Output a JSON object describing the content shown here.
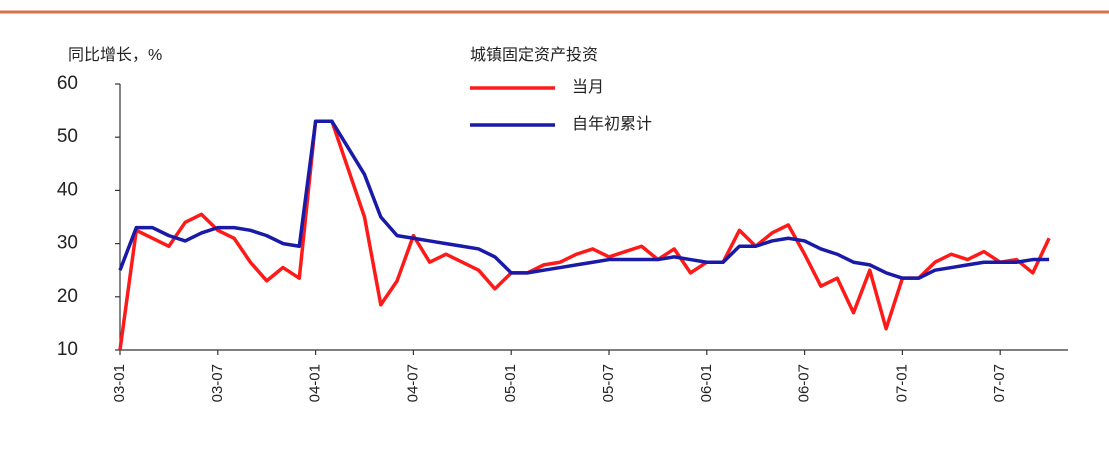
{
  "chart_data": {
    "type": "line",
    "title": "城镇固定资产投资",
    "y_label": "同比增长，%",
    "categories": [
      "03-01",
      null,
      null,
      null,
      null,
      null,
      "03-07",
      null,
      null,
      null,
      null,
      null,
      "04-01",
      null,
      null,
      null,
      null,
      null,
      "04-07",
      null,
      null,
      null,
      null,
      null,
      "05-01",
      null,
      null,
      null,
      null,
      null,
      "05-07",
      null,
      null,
      null,
      null,
      null,
      "06-01",
      null,
      null,
      null,
      null,
      null,
      "06-07",
      null,
      null,
      null,
      null,
      null,
      "07-01",
      null,
      null,
      null,
      null,
      null,
      "07-07",
      null,
      null,
      null
    ],
    "series": [
      {
        "name": "当月",
        "color": "#ff1a1a",
        "values": [
          10,
          32.5,
          31,
          29.5,
          34,
          35.5,
          32.5,
          31,
          26.5,
          23,
          25.5,
          23.5,
          53,
          53,
          44,
          35,
          18.5,
          23,
          31.5,
          26.5,
          28,
          26.5,
          25,
          21.5,
          24.5,
          24.5,
          26,
          26.5,
          28,
          29,
          27.5,
          28.5,
          29.5,
          27,
          29,
          24.5,
          26.5,
          26.5,
          32.5,
          29.5,
          32,
          33.5,
          28,
          22,
          23.5,
          17,
          25,
          14,
          23.5,
          23.5,
          26.5,
          28,
          27,
          28.5,
          26.5,
          27,
          24.5,
          31
        ]
      },
      {
        "name": "自年初累计",
        "color": "#1a1aa8",
        "values": [
          25,
          33,
          33,
          31.5,
          30.5,
          32,
          33,
          33,
          32.5,
          31.5,
          30,
          29.5,
          53,
          53,
          48,
          43,
          35,
          31.5,
          31,
          30.5,
          30,
          29.5,
          29,
          27.5,
          24.5,
          24.5,
          25,
          25.5,
          26,
          26.5,
          27,
          27,
          27,
          27,
          27.5,
          27,
          26.5,
          26.5,
          29.5,
          29.5,
          30.5,
          31,
          30.5,
          29,
          28,
          26.5,
          26,
          24.5,
          23.5,
          23.5,
          25,
          25.5,
          26,
          26.5,
          26.5,
          26.5,
          27,
          27
        ]
      }
    ],
    "ylim": [
      10,
      60
    ],
    "yticks": [
      10,
      20,
      30,
      40,
      50,
      60
    ],
    "grid": false
  }
}
